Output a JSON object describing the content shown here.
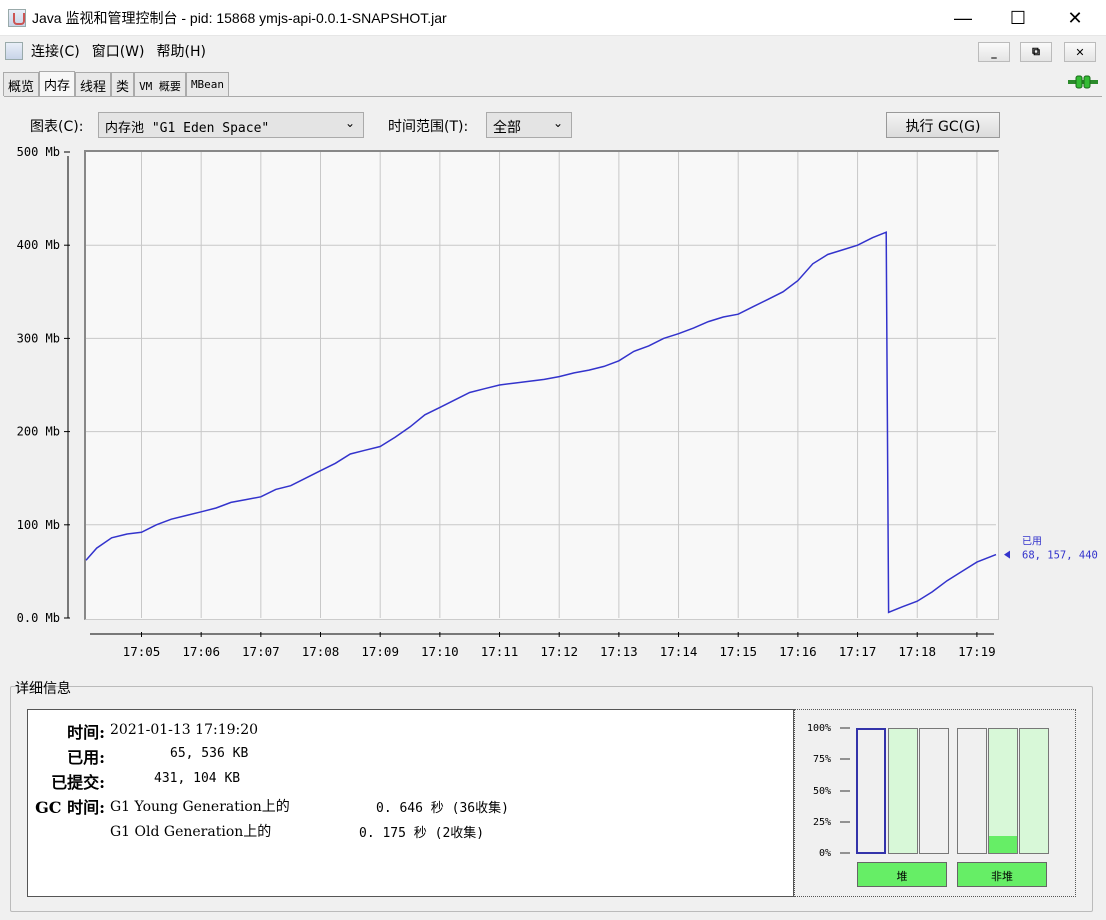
{
  "window": {
    "title": "Java 监视和管理控制台 - pid: 15868 ymjs-api-0.0.1-SNAPSHOT.jar"
  },
  "menu": {
    "items": [
      "连接(C)",
      "窗口(W)",
      "帮助(H)"
    ]
  },
  "tabs": [
    "概览",
    "内存",
    "线程",
    "类",
    "VM 概要",
    "MBean"
  ],
  "active_tab": "内存",
  "controls": {
    "chart_label": "图表(C):",
    "chart_value": "内存池 \"G1 Eden Space\"",
    "range_label": "时间范围(T):",
    "range_value": "全部",
    "gc_button": "执行 GC(G)"
  },
  "chart_data": {
    "type": "line",
    "y_tick_labels": [
      "0.0 Mb",
      "100 Mb",
      "200 Mb",
      "300 Mb",
      "400 Mb",
      "500 Mb"
    ],
    "x_tick_labels": [
      "17:05",
      "17:06",
      "17:07",
      "17:08",
      "17:09",
      "17:10",
      "17:11",
      "17:12",
      "17:13",
      "17:14",
      "17:15",
      "17:16",
      "17:17",
      "17:18",
      "17:19"
    ],
    "ylim": [
      0,
      500
    ],
    "xlim_minutes": [
      17.07,
      32.32
    ],
    "series": [
      {
        "name": "已用",
        "color": "#3333cc",
        "x_minutes": [
          17.07,
          17.25,
          17.5,
          17.75,
          18.0,
          18.25,
          18.5,
          18.75,
          19.0,
          19.25,
          19.5,
          19.75,
          20.0,
          20.25,
          20.5,
          20.75,
          21.0,
          21.25,
          21.5,
          21.75,
          22.0,
          22.25,
          22.5,
          22.75,
          23.0,
          23.25,
          23.5,
          23.75,
          24.0,
          24.25,
          24.5,
          24.75,
          25.0,
          25.25,
          25.5,
          25.75,
          26.0,
          26.25,
          26.5,
          26.75,
          27.0,
          27.25,
          27.5,
          27.75,
          28.0,
          28.25,
          28.5,
          28.75,
          29.0,
          29.25,
          29.5,
          29.75,
          30.0,
          30.25,
          30.48,
          30.52,
          30.75,
          31.0,
          31.25,
          31.5,
          31.75,
          32.0,
          32.32
        ],
        "y_mb": [
          62,
          75,
          86,
          90,
          92,
          100,
          106,
          110,
          114,
          118,
          124,
          127,
          130,
          138,
          142,
          150,
          158,
          166,
          176,
          180,
          184,
          194,
          205,
          218,
          226,
          234,
          242,
          246,
          250,
          252,
          254,
          256,
          259,
          263,
          266,
          270,
          276,
          286,
          292,
          300,
          305,
          311,
          318,
          323,
          326,
          334,
          342,
          350,
          362,
          380,
          390,
          395,
          400,
          408,
          414,
          6,
          12,
          18,
          28,
          40,
          50,
          60,
          68
        ]
      }
    ],
    "annotation": {
      "label": "已用",
      "value": "68, 157, 440"
    }
  },
  "details": {
    "title": "详细信息",
    "time_label": "时间:",
    "time_value": "2021-01-13 17:19:20",
    "used_label": "已用:",
    "used_value": "65, 536 KB",
    "committed_label": "已提交:",
    "committed_value": "431, 104 KB",
    "gc_label": "GC 时间:",
    "gc_rows": [
      {
        "name": "G1 Young Generation上的",
        "time": "0. 646  秒 (36收集)"
      },
      {
        "name": "G1 Old Generation上的",
        "time": "0. 175  秒 (2收集)"
      }
    ]
  },
  "pools": {
    "pct_labels": [
      "100%",
      "75%",
      "50%",
      "25%",
      "0%"
    ],
    "heap_fill": [
      0,
      0,
      0
    ],
    "nonheap_fill": [
      0,
      0.14,
      0
    ],
    "heap_label": "堆",
    "nonheap_label": "非堆"
  }
}
